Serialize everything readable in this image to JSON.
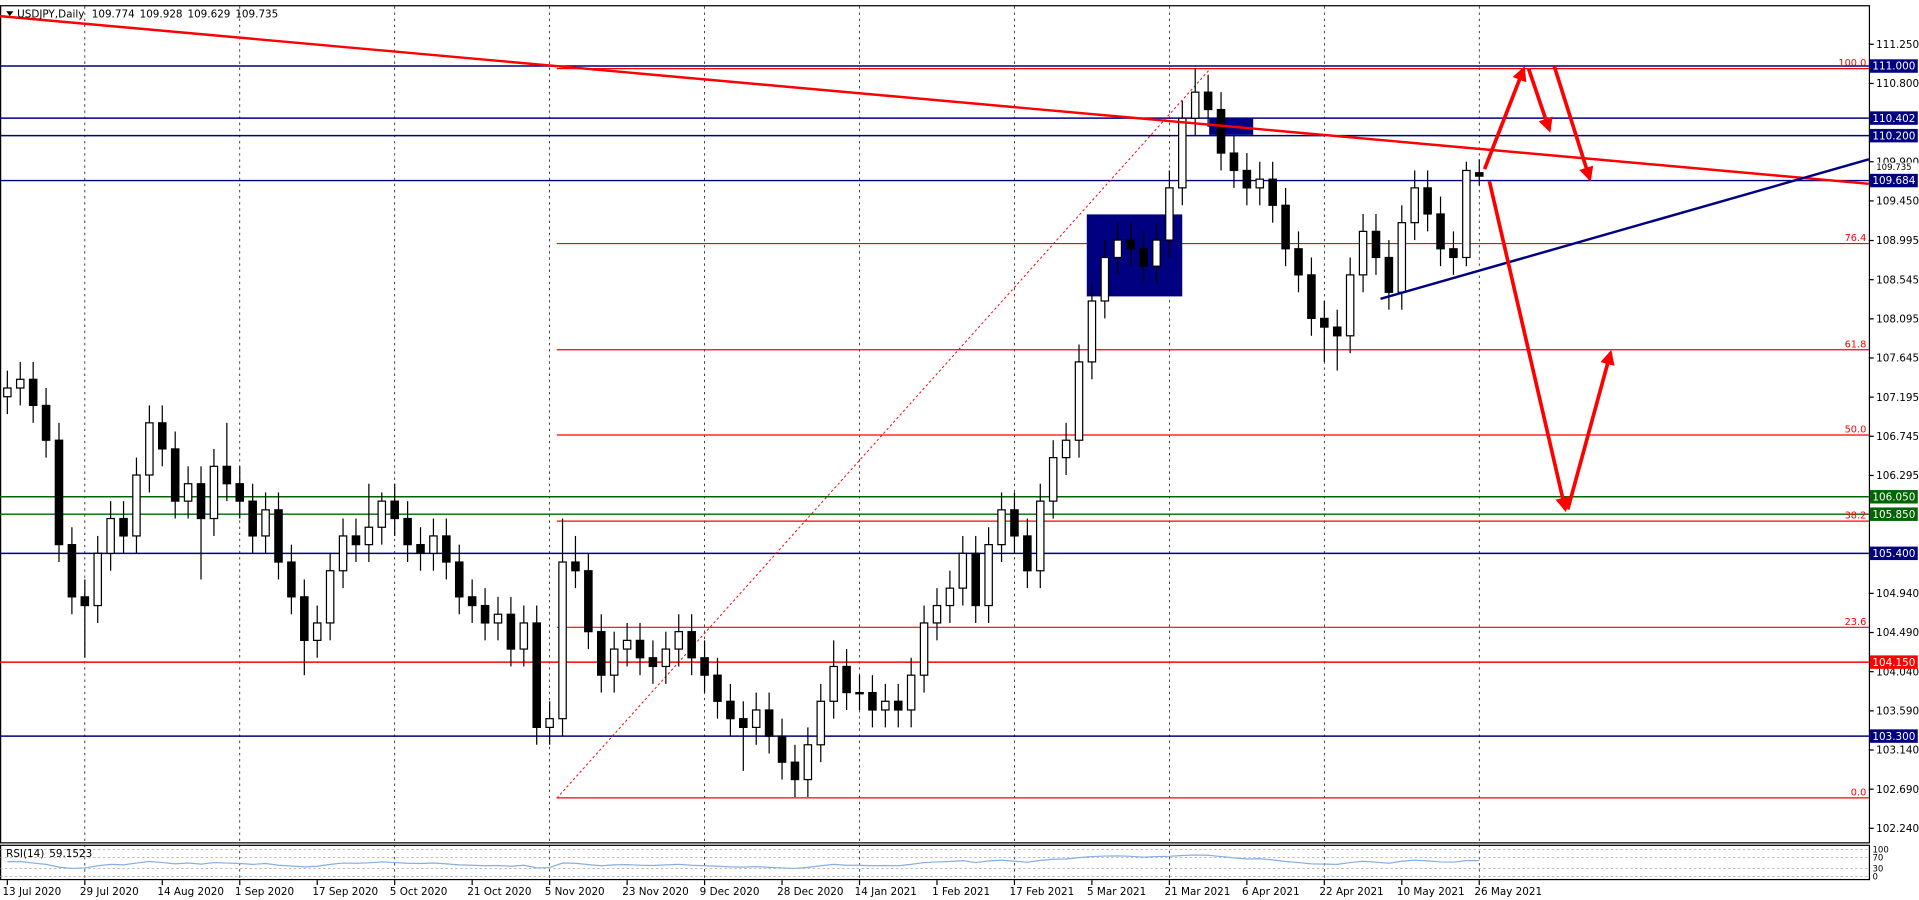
{
  "chart_data": {
    "type": "candlestick",
    "title": "USDJPY,Daily",
    "ylim": [
      102.08,
      111.7
    ],
    "yticks": [
      {
        "value": 111.25,
        "label": "111.250"
      },
      {
        "value": 110.8,
        "label": "110.800"
      },
      {
        "value": 109.9,
        "label": "109.900"
      },
      {
        "value": 109.45,
        "label": "109.450"
      },
      {
        "value": 108.995,
        "label": "108.995"
      },
      {
        "value": 108.545,
        "label": "108.545"
      },
      {
        "value": 108.095,
        "label": "108.095"
      },
      {
        "value": 107.645,
        "label": "107.645"
      },
      {
        "value": 107.195,
        "label": "107.195"
      },
      {
        "value": 106.745,
        "label": "106.745"
      },
      {
        "value": 106.295,
        "label": "106.295"
      },
      {
        "value": 104.94,
        "label": "104.940"
      },
      {
        "value": 104.49,
        "label": "104.490"
      },
      {
        "value": 104.04,
        "label": "104.040"
      },
      {
        "value": 103.59,
        "label": "103.590"
      },
      {
        "value": 103.14,
        "label": "103.140"
      },
      {
        "value": 102.69,
        "label": "102.690"
      },
      {
        "value": 102.24,
        "label": "102.240"
      }
    ],
    "categories": [
      "13 Jul 2020",
      "29 Jul 2020",
      "14 Aug 2020",
      "1 Sep 2020",
      "17 Sep 2020",
      "5 Oct 2020",
      "21 Oct 2020",
      "5 Nov 2020",
      "23 Nov 2020",
      "9 Dec 2020",
      "28 Dec 2020",
      "14 Jan 2021",
      "1 Feb 2021",
      "17 Feb 2021",
      "5 Mar 2021",
      "21 Mar 2021",
      "6 Apr 2021",
      "22 Apr 2021",
      "10 May 2021",
      "26 May 2021"
    ],
    "bull_color": "#ffffff",
    "bear_color": "#000000",
    "ohlc": [
      [
        107.2,
        107.5,
        107.0,
        107.3
      ],
      [
        107.3,
        107.6,
        107.1,
        107.4
      ],
      [
        107.4,
        107.6,
        106.9,
        107.1
      ],
      [
        107.1,
        107.3,
        106.5,
        106.7
      ],
      [
        106.7,
        106.9,
        105.3,
        105.5
      ],
      [
        105.5,
        105.7,
        104.7,
        104.9
      ],
      [
        104.9,
        105.1,
        104.2,
        104.8
      ],
      [
        104.8,
        105.6,
        104.6,
        105.4
      ],
      [
        105.4,
        106.0,
        105.2,
        105.8
      ],
      [
        105.8,
        106.0,
        105.4,
        105.6
      ],
      [
        105.6,
        106.5,
        105.4,
        106.3
      ],
      [
        106.3,
        107.1,
        106.1,
        106.9
      ],
      [
        106.9,
        107.1,
        106.4,
        106.6
      ],
      [
        106.6,
        106.8,
        105.8,
        106.0
      ],
      [
        106.0,
        106.4,
        105.8,
        106.2
      ],
      [
        106.2,
        106.4,
        105.1,
        105.8
      ],
      [
        105.8,
        106.6,
        105.6,
        106.4
      ],
      [
        106.4,
        106.9,
        106.0,
        106.2
      ],
      [
        106.2,
        106.4,
        105.8,
        106.0
      ],
      [
        106.0,
        106.2,
        105.4,
        105.6
      ],
      [
        105.6,
        106.1,
        105.4,
        105.9
      ],
      [
        105.9,
        106.1,
        105.1,
        105.3
      ],
      [
        105.3,
        105.5,
        104.7,
        104.9
      ],
      [
        104.9,
        105.1,
        104.0,
        104.4
      ],
      [
        104.4,
        104.8,
        104.2,
        104.6
      ],
      [
        104.6,
        105.4,
        104.4,
        105.2
      ],
      [
        105.2,
        105.8,
        105.0,
        105.6
      ],
      [
        105.6,
        105.8,
        105.3,
        105.5
      ],
      [
        105.5,
        106.2,
        105.3,
        105.7
      ],
      [
        105.7,
        106.1,
        105.5,
        106.0
      ],
      [
        106.0,
        106.2,
        105.6,
        105.8
      ],
      [
        105.8,
        106.0,
        105.3,
        105.5
      ],
      [
        105.5,
        105.7,
        105.2,
        105.4
      ],
      [
        105.4,
        105.8,
        105.2,
        105.6
      ],
      [
        105.6,
        105.8,
        105.1,
        105.3
      ],
      [
        105.3,
        105.5,
        104.7,
        104.9
      ],
      [
        104.9,
        105.1,
        104.6,
        104.8
      ],
      [
        104.8,
        105.0,
        104.4,
        104.6
      ],
      [
        104.6,
        104.9,
        104.4,
        104.7
      ],
      [
        104.7,
        104.9,
        104.1,
        104.3
      ],
      [
        104.3,
        104.8,
        104.1,
        104.6
      ],
      [
        104.6,
        104.8,
        103.2,
        103.4
      ],
      [
        103.4,
        103.7,
        103.2,
        103.5
      ],
      [
        103.5,
        105.8,
        103.3,
        105.3
      ],
      [
        105.3,
        105.6,
        105.0,
        105.2
      ],
      [
        105.2,
        105.4,
        104.3,
        104.5
      ],
      [
        104.5,
        104.7,
        103.8,
        104.0
      ],
      [
        104.0,
        104.5,
        103.8,
        104.3
      ],
      [
        104.3,
        104.6,
        104.1,
        104.4
      ],
      [
        104.4,
        104.6,
        104.0,
        104.2
      ],
      [
        104.2,
        104.4,
        103.9,
        104.1
      ],
      [
        104.1,
        104.5,
        103.9,
        104.3
      ],
      [
        104.3,
        104.7,
        104.1,
        104.5
      ],
      [
        104.5,
        104.7,
        104.0,
        104.2
      ],
      [
        104.2,
        104.4,
        103.8,
        104.0
      ],
      [
        104.0,
        104.2,
        103.5,
        103.7
      ],
      [
        103.7,
        103.9,
        103.3,
        103.5
      ],
      [
        103.5,
        103.7,
        102.9,
        103.4
      ],
      [
        103.4,
        103.8,
        103.2,
        103.6
      ],
      [
        103.6,
        103.8,
        103.1,
        103.3
      ],
      [
        103.3,
        103.5,
        102.8,
        103.0
      ],
      [
        103.0,
        103.2,
        102.6,
        102.8
      ],
      [
        102.8,
        103.4,
        102.6,
        103.2
      ],
      [
        103.2,
        103.9,
        103.0,
        103.7
      ],
      [
        103.7,
        104.4,
        103.5,
        104.1
      ],
      [
        104.1,
        104.3,
        103.6,
        103.8
      ],
      [
        103.8,
        104.0,
        103.6,
        103.8
      ],
      [
        103.8,
        104.0,
        103.4,
        103.6
      ],
      [
        103.6,
        103.9,
        103.4,
        103.7
      ],
      [
        103.7,
        103.9,
        103.4,
        103.6
      ],
      [
        103.6,
        104.2,
        103.4,
        104.0
      ],
      [
        104.0,
        104.8,
        103.8,
        104.6
      ],
      [
        104.6,
        105.0,
        104.4,
        104.8
      ],
      [
        104.8,
        105.2,
        104.6,
        105.0
      ],
      [
        105.0,
        105.6,
        104.8,
        105.4
      ],
      [
        105.4,
        105.6,
        104.6,
        104.8
      ],
      [
        104.8,
        105.7,
        104.6,
        105.5
      ],
      [
        105.5,
        106.1,
        105.3,
        105.9
      ],
      [
        105.9,
        106.1,
        105.4,
        105.6
      ],
      [
        105.6,
        105.8,
        105.0,
        105.2
      ],
      [
        105.2,
        106.2,
        105.0,
        106.0
      ],
      [
        106.0,
        106.7,
        105.8,
        106.5
      ],
      [
        106.5,
        106.9,
        106.3,
        106.7
      ],
      [
        106.7,
        107.8,
        106.5,
        107.6
      ],
      [
        107.6,
        108.5,
        107.4,
        108.3
      ],
      [
        108.3,
        109.0,
        108.1,
        108.8
      ],
      [
        108.8,
        109.2,
        108.6,
        109.0
      ],
      [
        109.0,
        109.2,
        108.7,
        108.9
      ],
      [
        108.9,
        109.1,
        108.5,
        108.7
      ],
      [
        108.7,
        109.2,
        108.5,
        109.0
      ],
      [
        109.0,
        109.8,
        108.8,
        109.6
      ],
      [
        109.6,
        110.6,
        109.4,
        110.4
      ],
      [
        110.4,
        110.97,
        110.2,
        110.7
      ],
      [
        110.7,
        110.9,
        110.3,
        110.5
      ],
      [
        110.5,
        110.7,
        109.8,
        110.0
      ],
      [
        110.0,
        110.2,
        109.6,
        109.8
      ],
      [
        109.8,
        110.0,
        109.4,
        109.6
      ],
      [
        109.6,
        109.9,
        109.4,
        109.7
      ],
      [
        109.7,
        109.9,
        109.2,
        109.4
      ],
      [
        109.4,
        109.6,
        108.7,
        108.9
      ],
      [
        108.9,
        109.1,
        108.4,
        108.6
      ],
      [
        108.6,
        108.8,
        107.9,
        108.1
      ],
      [
        108.1,
        108.3,
        107.6,
        108.0
      ],
      [
        108.0,
        108.2,
        107.5,
        107.9
      ],
      [
        107.9,
        108.8,
        107.7,
        108.6
      ],
      [
        108.6,
        109.3,
        108.4,
        109.1
      ],
      [
        109.1,
        109.3,
        108.6,
        108.8
      ],
      [
        108.8,
        109.0,
        108.2,
        108.4
      ],
      [
        108.4,
        109.4,
        108.2,
        109.2
      ],
      [
        109.2,
        109.8,
        109.0,
        109.6
      ],
      [
        109.6,
        109.8,
        109.1,
        109.3
      ],
      [
        109.3,
        109.5,
        108.7,
        108.9
      ],
      [
        108.9,
        109.1,
        108.6,
        108.8
      ],
      [
        108.8,
        109.9,
        108.7,
        109.8
      ],
      [
        109.774,
        109.928,
        109.629,
        109.735
      ]
    ],
    "levels": [
      {
        "value": 111.0,
        "label": "111.000",
        "color": "#000080"
      },
      {
        "value": 110.402,
        "label": "110.402",
        "color": "#000080"
      },
      {
        "value": 110.2,
        "label": "110.200",
        "color": "#000080"
      },
      {
        "value": 109.684,
        "label": "109.684",
        "color": "#000080"
      },
      {
        "value": 106.05,
        "label": "106.050",
        "color": "#006400"
      },
      {
        "value": 105.85,
        "label": "105.850",
        "color": "#006400"
      },
      {
        "value": 105.4,
        "label": "105.400",
        "color": "#000080"
      },
      {
        "value": 104.15,
        "label": "104.150",
        "color": "#ff0000"
      },
      {
        "value": 103.3,
        "label": "103.300",
        "color": "#000080"
      }
    ],
    "fib_color": "#ff0000",
    "fib": [
      {
        "value": 110.97,
        "label": "100.0"
      },
      {
        "value": 108.96,
        "label": "76.4"
      },
      {
        "value": 107.74,
        "label": "61.8"
      },
      {
        "value": 106.76,
        "label": "50.0"
      },
      {
        "value": 105.77,
        "label": "38.2"
      },
      {
        "value": 104.55,
        "label": "23.6"
      },
      {
        "value": 102.59,
        "label": "0.0"
      }
    ],
    "rsi": {
      "title": "RSI(14)",
      "color": "#87aee0",
      "ylim": [
        0,
        100
      ],
      "yticks": [
        100,
        70,
        30,
        0
      ],
      "values": [
        55,
        56,
        50,
        45,
        35,
        30,
        32,
        40,
        45,
        43,
        50,
        56,
        52,
        47,
        50,
        46,
        52,
        50,
        48,
        45,
        48,
        42,
        39,
        36,
        38,
        45,
        50,
        49,
        51,
        54,
        52,
        49,
        48,
        50,
        47,
        43,
        42,
        40,
        41,
        38,
        42,
        32,
        33,
        50,
        49,
        44,
        40,
        43,
        44,
        42,
        41,
        43,
        45,
        42,
        40,
        38,
        36,
        35,
        37,
        34,
        32,
        30,
        34,
        40,
        45,
        42,
        42,
        40,
        41,
        40,
        45,
        52,
        54,
        56,
        59,
        52,
        58,
        61,
        57,
        53,
        60,
        64,
        65,
        70,
        74,
        76,
        77,
        75,
        72,
        74,
        75,
        78,
        80,
        79,
        74,
        69,
        65,
        66,
        62,
        56,
        52,
        47,
        46,
        45,
        52,
        57,
        53,
        49,
        57,
        61,
        58,
        54,
        53,
        59,
        59.1523
      ]
    }
  }
}
